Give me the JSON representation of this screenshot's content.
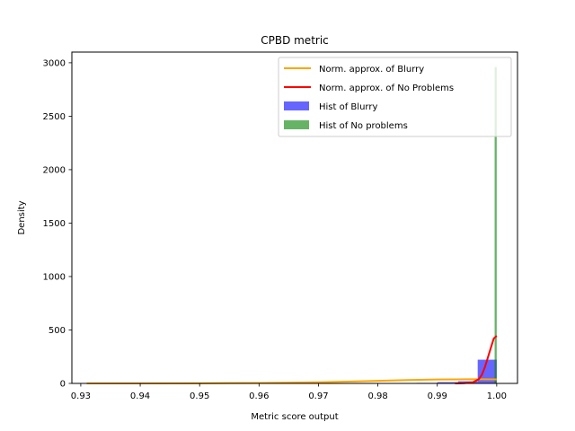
{
  "chart_data": {
    "type": "histogram",
    "title": "CPBD metric",
    "xlabel": "Metric score output",
    "ylabel": "Density",
    "xlim": [
      0.9285,
      1.0035
    ],
    "ylim": [
      0,
      3100
    ],
    "xticks": [
      0.93,
      0.94,
      0.95,
      0.96,
      0.97,
      0.98,
      0.99,
      1.0
    ],
    "xtick_labels": [
      "0.93",
      "0.94",
      "0.95",
      "0.96",
      "0.97",
      "0.98",
      "0.99",
      "1.00"
    ],
    "yticks": [
      0,
      500,
      1000,
      1500,
      2000,
      2500,
      3000
    ],
    "ytick_labels": [
      "0",
      "500",
      "1000",
      "1500",
      "2000",
      "2500",
      "3000"
    ],
    "grid": false,
    "legend_position": "top-right",
    "series": [
      {
        "name": "Norm. approx. of Blurry",
        "kind": "line",
        "color": "#ffa500",
        "x": [
          0.931,
          0.94,
          0.95,
          0.96,
          0.965,
          0.97,
          0.975,
          0.98,
          0.985,
          0.99,
          0.995,
          0.9975,
          1.0
        ],
        "y": [
          0,
          0.3,
          1.5,
          4,
          7,
          11,
          17,
          24,
          31,
          37,
          39,
          39,
          38
        ]
      },
      {
        "name": "Norm. approx. of No Problems",
        "kind": "line",
        "color": "#ff0000",
        "x": [
          0.993,
          0.9945,
          0.996,
          0.997,
          0.9975,
          0.998,
          0.9985,
          0.999,
          0.9995,
          1.0
        ],
        "y": [
          0,
          2,
          10,
          40,
          80,
          150,
          240,
          330,
          420,
          445
        ]
      },
      {
        "name": "Hist of Blurry",
        "kind": "bar",
        "color": "#0000ff",
        "opacity": 0.6,
        "bins": [
          {
            "start": 0.983,
            "end": 0.9865,
            "value": 3
          },
          {
            "start": 0.9865,
            "end": 0.99,
            "value": 5
          },
          {
            "start": 0.99,
            "end": 0.9935,
            "value": 12
          },
          {
            "start": 0.9935,
            "end": 0.9968,
            "value": 20
          },
          {
            "start": 0.9968,
            "end": 1.0,
            "value": 222
          }
        ]
      },
      {
        "name": "Hist of No problems",
        "kind": "bar",
        "color": "#008000",
        "opacity": 0.6,
        "bins": [
          {
            "start": 0.99965,
            "end": 1.0,
            "value": 2960
          }
        ]
      }
    ]
  }
}
